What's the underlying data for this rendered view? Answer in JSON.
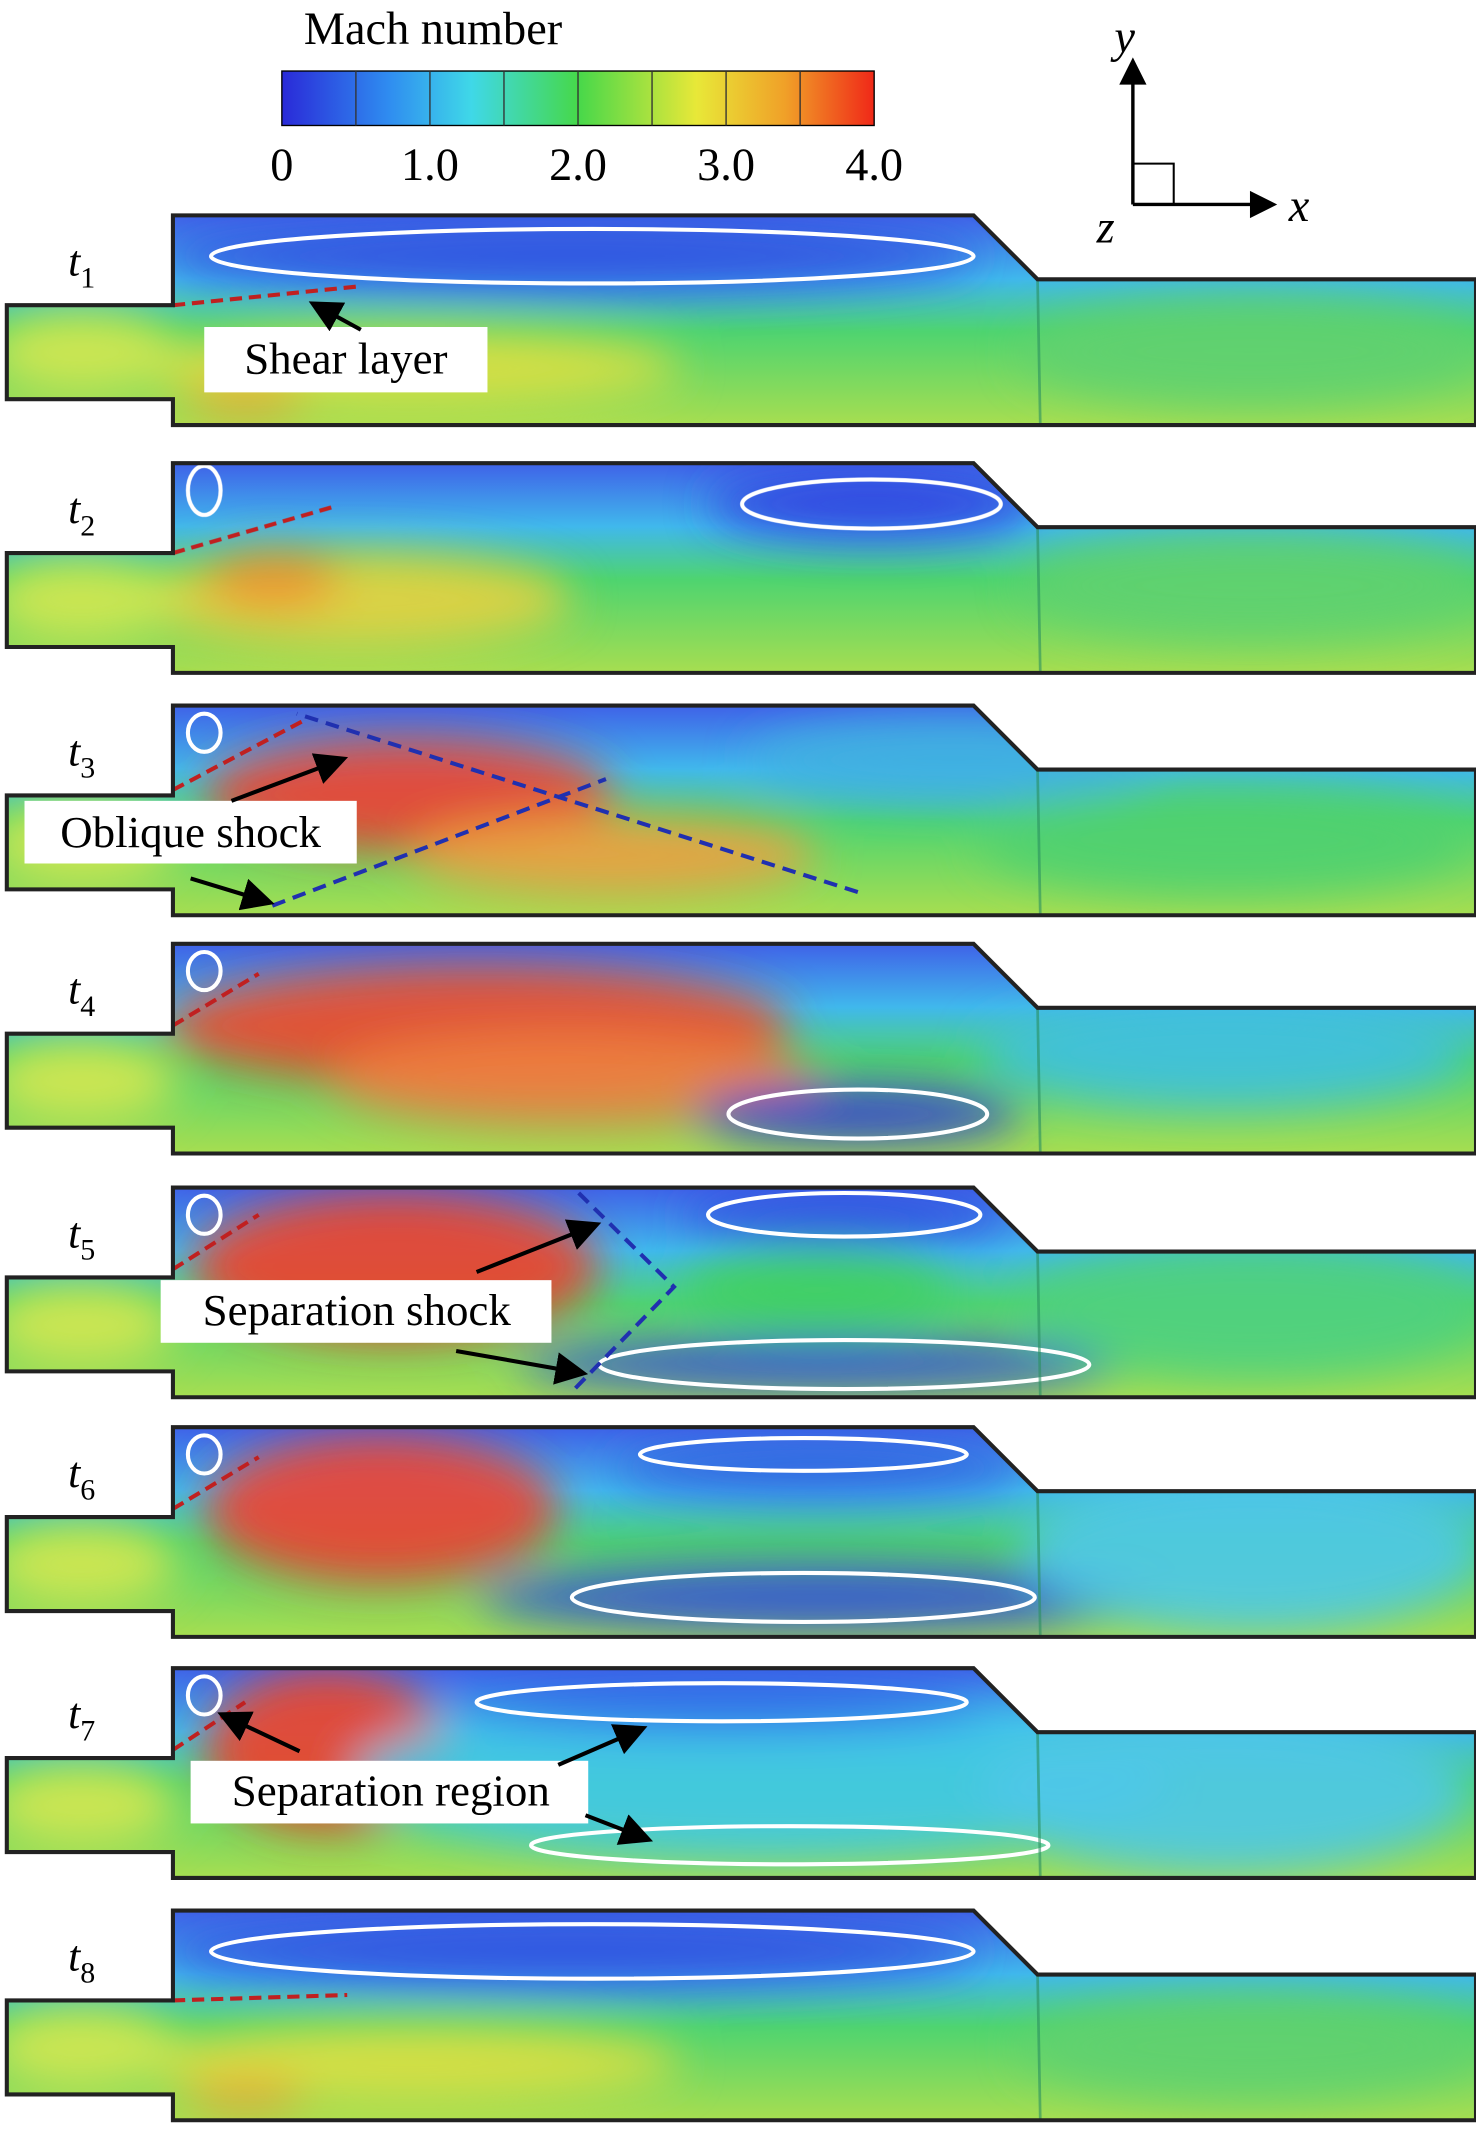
{
  "colorbar": {
    "title": "Mach number",
    "ticks": [
      0,
      {
        "value": 1,
        "label": "1.0"
      },
      {
        "value": 2,
        "label": "2.0"
      },
      {
        "value": 3,
        "label": "3.0"
      },
      {
        "value": 4,
        "label": "4.0"
      }
    ]
  },
  "axes": {
    "x": "x",
    "y": "y",
    "z": "z"
  },
  "panels": [
    {
      "label": "t",
      "subscript": "1"
    },
    {
      "label": "t",
      "subscript": "2"
    },
    {
      "label": "t",
      "subscript": "3"
    },
    {
      "label": "t",
      "subscript": "4"
    },
    {
      "label": "t",
      "subscript": "5"
    },
    {
      "label": "t",
      "subscript": "6"
    },
    {
      "label": "t",
      "subscript": "7"
    },
    {
      "label": "t",
      "subscript": "8"
    }
  ],
  "annotations": [
    "Shear layer",
    "Oblique shock",
    "Separation shock",
    "Separation region"
  ]
}
